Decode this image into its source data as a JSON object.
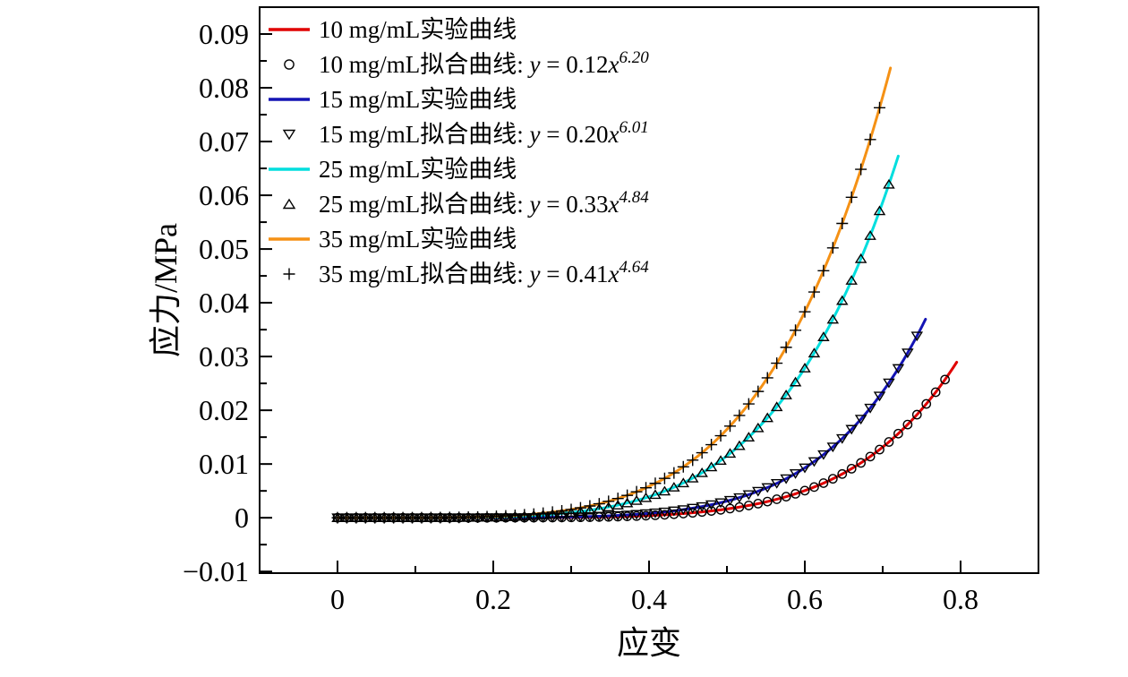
{
  "chart_data": {
    "type": "line",
    "title": "",
    "xlabel": "应变",
    "ylabel": "应力/MPa",
    "xlim": [
      -0.1,
      0.9
    ],
    "ylim": [
      -0.0103,
      0.095
    ],
    "grid": false,
    "legend_position": "upper-left",
    "x_major_ticks": [
      0,
      0.2,
      0.4,
      0.6,
      0.8
    ],
    "x_tick_labels": [
      "0",
      "0.2",
      "0.4",
      "0.6",
      "0.8"
    ],
    "x_minor_ticks": [
      0.1,
      0.3,
      0.5,
      0.7
    ],
    "y_major_ticks": [
      -0.01,
      0,
      0.01,
      0.02,
      0.03,
      0.04,
      0.05,
      0.06,
      0.07,
      0.08,
      0.09
    ],
    "y_tick_labels": [
      "−0.01",
      "0",
      "0.01",
      "0.02",
      "0.03",
      "0.04",
      "0.05",
      "0.06",
      "0.07",
      "0.08",
      "0.09"
    ],
    "y_minor_ticks": [
      -0.005,
      0.005,
      0.015,
      0.025,
      0.035,
      0.045,
      0.055,
      0.065,
      0.075,
      0.085
    ],
    "series": [
      {
        "label": "10 mg/mL实验曲线",
        "style": "line",
        "color": "#e00000",
        "model": "power",
        "a": 0.12,
        "b": 6.2,
        "x_start": 0,
        "x_end": 0.795
      },
      {
        "label": "10 mg/mL拟合曲线: ",
        "style": "marker",
        "marker": "circle",
        "color": "#000000",
        "model": "power",
        "a": 0.12,
        "b": 6.2,
        "x_start": 0,
        "x_end": 0.78,
        "marker_step": 0.012,
        "eq": [
          {
            "t": "y",
            "i": 1
          },
          {
            "t": " = 0.12",
            "i": 0
          },
          {
            "t": "x",
            "i": 1
          },
          {
            "t": "6.20",
            "s": 1
          }
        ]
      },
      {
        "label": "15 mg/mL实验曲线",
        "style": "line",
        "color": "#1414b4",
        "model": "power",
        "a": 0.2,
        "b": 6.01,
        "x_start": 0,
        "x_end": 0.755
      },
      {
        "label": "15 mg/mL拟合曲线: ",
        "style": "marker",
        "marker": "triangle-down",
        "color": "#000000",
        "model": "power",
        "a": 0.2,
        "b": 6.01,
        "x_start": 0,
        "x_end": 0.745,
        "marker_step": 0.012,
        "eq": [
          {
            "t": "y",
            "i": 1
          },
          {
            "t": " = 0.20",
            "i": 0
          },
          {
            "t": "x",
            "i": 1
          },
          {
            "t": "6.01",
            "s": 1
          }
        ]
      },
      {
        "label": "25 mg/mL实验曲线",
        "style": "line",
        "color": "#00dede",
        "model": "power",
        "a": 0.33,
        "b": 4.84,
        "x_start": 0,
        "x_end": 0.72
      },
      {
        "label": "25 mg/mL拟合曲线: ",
        "style": "marker",
        "marker": "triangle-up",
        "color": "#000000",
        "model": "power",
        "a": 0.33,
        "b": 4.84,
        "x_start": 0,
        "x_end": 0.71,
        "marker_step": 0.012,
        "eq": [
          {
            "t": "y",
            "i": 1
          },
          {
            "t": " = 0.33",
            "i": 0
          },
          {
            "t": "x",
            "i": 1
          },
          {
            "t": "4.84",
            "s": 1
          }
        ]
      },
      {
        "label": "35 mg/mL实验曲线",
        "style": "line",
        "color": "#f59115",
        "model": "power",
        "a": 0.41,
        "b": 4.64,
        "x_start": 0,
        "x_end": 0.71
      },
      {
        "label": "35 mg/mL拟合曲线: ",
        "style": "marker",
        "marker": "plus",
        "color": "#000000",
        "model": "power",
        "a": 0.41,
        "b": 4.64,
        "x_start": 0,
        "x_end": 0.7,
        "marker_step": 0.012,
        "eq": [
          {
            "t": "y",
            "i": 1
          },
          {
            "t": " = 0.41",
            "i": 0
          },
          {
            "t": "x",
            "i": 1
          },
          {
            "t": "4.64",
            "s": 1
          }
        ]
      }
    ]
  }
}
